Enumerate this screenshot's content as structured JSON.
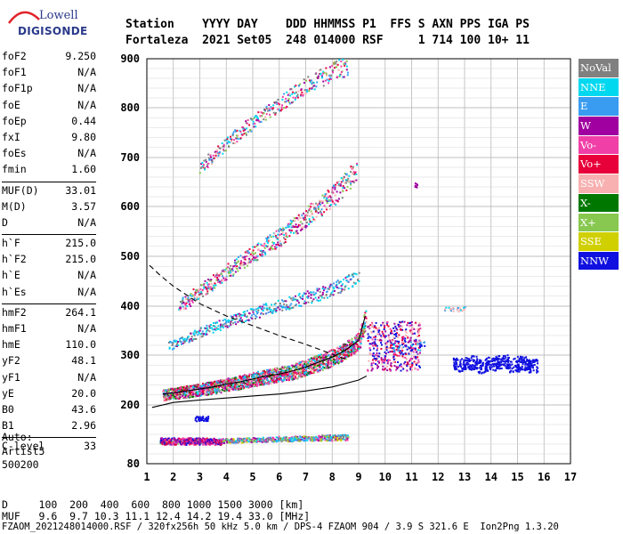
{
  "logo": {
    "line1": "Lowell",
    "line2": "DIGISONDE"
  },
  "header": {
    "row1": "Station    YYYY DAY    DDD HHMMSS P1  FFS S AXN PPS IGA PS",
    "row2": "Fortaleza  2021 Set05  248 014000 RSF     1 714 100 10+ 11"
  },
  "params": [
    [
      [
        "foF2",
        "9.250"
      ],
      [
        "foF1",
        "N/A"
      ],
      [
        "foF1p",
        "N/A"
      ],
      [
        "foE",
        "N/A"
      ],
      [
        "foEp",
        "0.44"
      ],
      [
        "fxI",
        "9.80"
      ],
      [
        "foEs",
        "N/A"
      ],
      [
        "fmin",
        "1.60"
      ]
    ],
    [
      [
        "MUF(D)",
        "33.01"
      ],
      [
        "M(D)",
        "3.57"
      ],
      [
        "D",
        "N/A"
      ]
    ],
    [
      [
        "h`F",
        "215.0"
      ],
      [
        "h`F2",
        "215.0"
      ],
      [
        "h`E",
        "N/A"
      ],
      [
        "h`Es",
        "N/A"
      ]
    ],
    [
      [
        "hmF2",
        "264.1"
      ],
      [
        "hmF1",
        "N/A"
      ],
      [
        "hmE",
        "110.0"
      ],
      [
        "yF2",
        "48.1"
      ],
      [
        "yF1",
        "N/A"
      ],
      [
        "yE",
        "20.0"
      ],
      [
        "B0",
        "43.6"
      ],
      [
        "B1",
        "2.96"
      ]
    ],
    [
      [
        "C-level",
        "33"
      ]
    ]
  ],
  "auto_text": [
    "Auto:",
    "Artist5",
    "500200"
  ],
  "legend": [
    {
      "label": "NoVal",
      "color": "#808080"
    },
    {
      "label": "NNE",
      "color": "#00d8f0"
    },
    {
      "label": "E",
      "color": "#3a9cf0"
    },
    {
      "label": "W",
      "color": "#a000a0"
    },
    {
      "label": "Vo-",
      "color": "#f040a8"
    },
    {
      "label": "Vo+",
      "color": "#e8003a"
    },
    {
      "label": "SSW",
      "color": "#f8b0b0"
    },
    {
      "label": "X-",
      "color": "#007800"
    },
    {
      "label": "X+",
      "color": "#88c850"
    },
    {
      "label": "SSE",
      "color": "#d0d000"
    },
    {
      "label": "NNW",
      "color": "#1010e0"
    }
  ],
  "bottom": {
    "d_row": "D     100  200  400  600  800 1000 1500 3000 [km]",
    "muf_row": "MUF   9.6  9.7 10.3 11.1 12.4 14.2 19.4 33.0 [MHz]",
    "footer": "FZAOM_2021248014000.RSF / 320fx256h 50 kHz 5.0 km / DPS-4 FZAOM 904 / 3.9 S 321.6 E  Ion2Png 1.3.20"
  },
  "chart_data": {
    "type": "scatter",
    "title": "",
    "xlabel": "",
    "ylabel": "",
    "xlim": [
      1,
      17
    ],
    "ylim": [
      80,
      900
    ],
    "x_ticks": [
      "1",
      "2",
      "3",
      "4",
      "5",
      "6",
      "7",
      "8",
      "9",
      "10",
      "11",
      "12",
      "13",
      "14",
      "15",
      "16",
      "17"
    ],
    "y_ticks": [
      "80",
      "200",
      "300",
      "400",
      "500",
      "600",
      "700",
      "800",
      "900"
    ],
    "y_tick_values": [
      80,
      200,
      300,
      400,
      500,
      600,
      700,
      800,
      900
    ],
    "grid": true,
    "traces": [
      {
        "name": "O-trace F2",
        "x": [
          1.6,
          2,
          2.5,
          3,
          3.5,
          4,
          4.5,
          5,
          5.5,
          6,
          6.5,
          7,
          7.5,
          8,
          8.5,
          9,
          9.25
        ],
        "y": [
          222,
          224,
          228,
          232,
          236,
          242,
          246,
          252,
          258,
          262,
          268,
          276,
          286,
          296,
          310,
          330,
          380
        ]
      },
      {
        "name": "second hop",
        "x": [
          2,
          2.5,
          3,
          3.5,
          4,
          4.5,
          5,
          5.5,
          6,
          6.5,
          7,
          7.5,
          8,
          8.5,
          9
        ],
        "y": [
          395,
          412,
          432,
          450,
          470,
          488,
          506,
          522,
          540,
          560,
          580,
          600,
          622,
          650,
          680
        ]
      },
      {
        "name": "third hop",
        "x": [
          3,
          3.5,
          4,
          4.5,
          5,
          5.5,
          6,
          6.5,
          7,
          7.5,
          8,
          8.5
        ],
        "y": [
          680,
          705,
          730,
          752,
          772,
          792,
          810,
          830,
          848,
          862,
          875,
          885
        ]
      },
      {
        "name": "spread",
        "x": [
          1.8,
          2.5,
          3,
          3.5,
          4,
          4.5,
          5,
          5.5,
          6,
          6.5,
          7,
          7.5,
          8,
          8.5,
          9
        ],
        "y": [
          320,
          334,
          348,
          358,
          368,
          378,
          386,
          395,
          402,
          410,
          418,
          426,
          436,
          446,
          460
        ]
      },
      {
        "name": "E-region",
        "x": [
          1.5,
          2,
          2.5,
          3,
          3.5,
          4,
          4.5,
          5,
          5.5,
          6,
          6.5,
          7,
          7.5,
          8,
          8.5
        ],
        "y": [
          125,
          126,
          126,
          127,
          128,
          128,
          129,
          130,
          131,
          132,
          132,
          133,
          134,
          134,
          135
        ]
      },
      {
        "name": "x-trace",
        "x": [
          12.8,
          13.2,
          13.6,
          14,
          14.4,
          14.8,
          15.2,
          15.5
        ],
        "y": [
          282,
          286,
          279,
          284,
          288,
          281,
          285,
          280
        ]
      },
      {
        "name": "spread cloud",
        "x": [
          9.3,
          9.6,
          9.9,
          10.2,
          10.5,
          10.8,
          11.1
        ],
        "y": [
          300,
          340,
          320,
          310,
          350,
          300,
          330
        ]
      }
    ],
    "profile_line": {
      "x": [
        1.2,
        2,
        3,
        4,
        5,
        6,
        7,
        8,
        9,
        9.3
      ],
      "y": [
        195,
        205,
        210,
        214,
        218,
        222,
        228,
        236,
        250,
        258
      ]
    },
    "dashed_line": {
      "x": [
        1.1,
        1.5,
        2,
        3,
        4,
        5,
        6,
        7,
        8,
        8.6
      ],
      "y": [
        482,
        462,
        440,
        405,
        380,
        360,
        340,
        322,
        302,
        290
      ]
    }
  }
}
